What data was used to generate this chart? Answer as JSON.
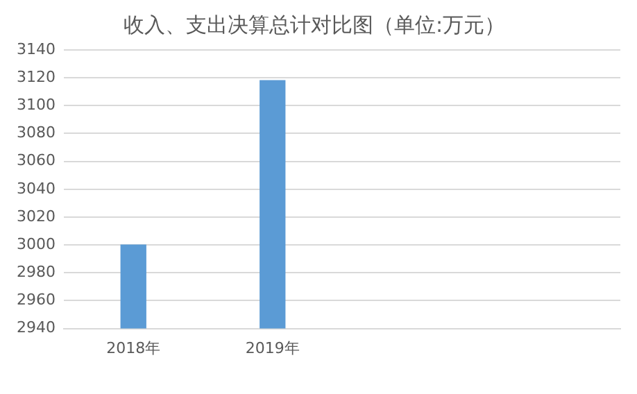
{
  "chart_data": {
    "type": "bar",
    "title": "收入、支出决算总计对比图（单位:万元）",
    "categories": [
      "2018年",
      "2019年",
      null,
      null
    ],
    "values": [
      3000,
      3118,
      null,
      null
    ],
    "color": "#5b9bd5",
    "ylim": [
      2940,
      3140
    ],
    "yticks": [
      2940,
      2960,
      2980,
      3000,
      3020,
      3040,
      3060,
      3080,
      3100,
      3120,
      3140
    ],
    "grid": "y",
    "legend": false
  }
}
